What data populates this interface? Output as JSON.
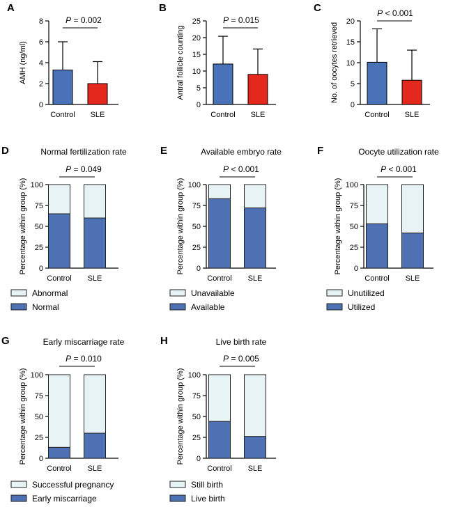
{
  "colors": {
    "control": "#4a72b8",
    "sle": "#e5281d",
    "lower": "#4e71b3",
    "upper": "#e8f3f5",
    "outline": "#222222"
  },
  "chart_data": [
    {
      "label": "A",
      "type": "bar",
      "title": "",
      "ylabel": "AMH (ng/ml)",
      "ylim": [
        0,
        8
      ],
      "yticks": [
        "0",
        "2",
        "4",
        "6",
        "8"
      ],
      "categories": [
        "Control",
        "SLE"
      ],
      "values": [
        3.3,
        2.0
      ],
      "error": [
        2.7,
        2.1
      ],
      "p_value": "P = 0.002"
    },
    {
      "label": "B",
      "type": "bar",
      "title": "",
      "ylabel": "Antral follicle counting",
      "ylim": [
        0,
        25
      ],
      "yticks": [
        "0",
        "5",
        "10",
        "15",
        "20",
        "25"
      ],
      "categories": [
        "Control",
        "SLE"
      ],
      "values": [
        12.1,
        9.0
      ],
      "error": [
        8.3,
        7.6
      ],
      "p_value": "P = 0.015"
    },
    {
      "label": "C",
      "type": "bar",
      "title": "",
      "ylabel": "No. of oocytes retrieved",
      "ylim": [
        0,
        20
      ],
      "yticks": [
        "0",
        "5",
        "10",
        "15",
        "20"
      ],
      "categories": [
        "Control",
        "SLE"
      ],
      "values": [
        10.1,
        5.8
      ],
      "error": [
        8.0,
        7.2
      ],
      "p_value": "P < 0.001"
    },
    {
      "label": "D",
      "type": "bar",
      "stacked": true,
      "title": "Normal fertilization rate",
      "ylabel": "Percentage within group  (%)",
      "ylim": [
        0,
        100
      ],
      "yticks": [
        "0",
        "25",
        "50",
        "75",
        "100"
      ],
      "categories": [
        "Control",
        "SLE"
      ],
      "series": [
        {
          "name": "Normal",
          "values": [
            65,
            60
          ]
        },
        {
          "name": "Abnormal",
          "values": [
            35,
            40
          ]
        }
      ],
      "p_value": "P = 0.049",
      "legend": [
        "Abnormal",
        "Normal"
      ]
    },
    {
      "label": "E",
      "type": "bar",
      "stacked": true,
      "title": "Available embryo rate",
      "ylabel": "Percentage within group  (%)",
      "ylim": [
        0,
        100
      ],
      "yticks": [
        "0",
        "25",
        "50",
        "75",
        "100"
      ],
      "categories": [
        "Control",
        "SLE"
      ],
      "series": [
        {
          "name": "Available",
          "values": [
            83,
            72
          ]
        },
        {
          "name": "Unavailable",
          "values": [
            17,
            28
          ]
        }
      ],
      "p_value": "P < 0.001",
      "legend": [
        "Unavailable",
        "Available"
      ]
    },
    {
      "label": "F",
      "type": "bar",
      "stacked": true,
      "title": "Oocyte utilization rate",
      "ylabel": "Percentage within group  (%)",
      "ylim": [
        0,
        100
      ],
      "yticks": [
        "0",
        "25",
        "50",
        "75",
        "100"
      ],
      "categories": [
        "Control",
        "SLE"
      ],
      "series": [
        {
          "name": "Utilized",
          "values": [
            53,
            42
          ]
        },
        {
          "name": "Unutilized",
          "values": [
            47,
            58
          ]
        }
      ],
      "p_value": "P < 0.001",
      "legend": [
        "Unutilized",
        "Utilized"
      ]
    },
    {
      "label": "G",
      "type": "bar",
      "stacked": true,
      "title": "Early miscarriage rate",
      "ylabel": "Percentage within group  (%)",
      "ylim": [
        0,
        100
      ],
      "yticks": [
        "0",
        "25",
        "50",
        "75",
        "100"
      ],
      "categories": [
        "Control",
        "SLE"
      ],
      "series": [
        {
          "name": "Early miscarriage",
          "values": [
            13,
            30
          ]
        },
        {
          "name": "Successful pregnancy",
          "values": [
            87,
            70
          ]
        }
      ],
      "p_value": "P = 0.010",
      "legend": [
        "Successful pregnancy",
        "Early miscarriage"
      ]
    },
    {
      "label": "H",
      "type": "bar",
      "stacked": true,
      "title": "Live birth rate",
      "ylabel": "Percentage within group  (%)",
      "ylim": [
        0,
        100
      ],
      "yticks": [
        "0",
        "25",
        "50",
        "75",
        "100"
      ],
      "categories": [
        "Control",
        "SLE"
      ],
      "series": [
        {
          "name": "Live birth",
          "values": [
            44,
            26
          ]
        },
        {
          "name": "Still birth",
          "values": [
            56,
            74
          ]
        }
      ],
      "p_value": "P = 0.005",
      "legend": [
        "Still birth",
        "Live birth"
      ]
    }
  ]
}
